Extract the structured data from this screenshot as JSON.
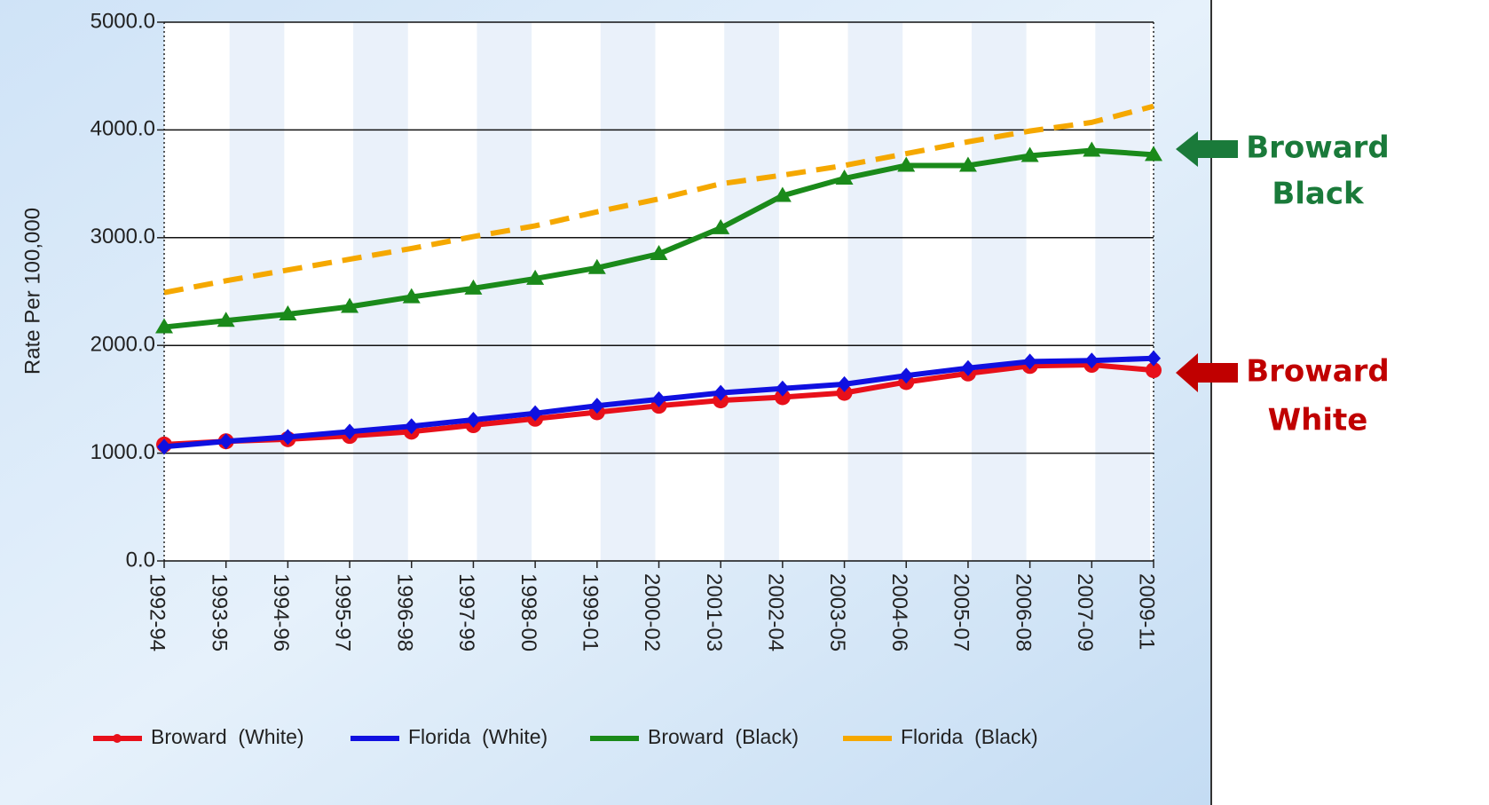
{
  "chart_data": {
    "type": "line",
    "y_label": "Rate Per 100,000",
    "categories": [
      "1992-94",
      "1993-95",
      "1994-96",
      "1995-97",
      "1996-98",
      "1997-99",
      "1998-00",
      "1999-01",
      "2000-02",
      "2001-03",
      "2002-04",
      "2003-05",
      "2004-06",
      "2005-07",
      "2006-08",
      "2007-09",
      "2009-11"
    ],
    "series": [
      {
        "name": "Broward  (White)",
        "color": "#e8101a",
        "marker": "circle",
        "dashed": false,
        "values": [
          1080,
          1110,
          1130,
          1160,
          1200,
          1260,
          1320,
          1380,
          1440,
          1490,
          1520,
          1560,
          1660,
          1740,
          1810,
          1820,
          1770
        ]
      },
      {
        "name": "Florida  (White)",
        "color": "#1010e0",
        "marker": "diamond",
        "dashed": false,
        "values": [
          1060,
          1110,
          1150,
          1200,
          1250,
          1310,
          1370,
          1440,
          1500,
          1560,
          1600,
          1640,
          1720,
          1790,
          1850,
          1860,
          1880
        ]
      },
      {
        "name": "Broward  (Black)",
        "color": "#1a8a1a",
        "marker": "triangle",
        "dashed": false,
        "values": [
          2170,
          2230,
          2290,
          2360,
          2450,
          2530,
          2620,
          2720,
          2850,
          3090,
          3390,
          3550,
          3670,
          3670,
          3760,
          3810,
          3770
        ]
      },
      {
        "name": "Florida  (Black)",
        "color": "#f5a800",
        "marker": "none",
        "dashed": true,
        "values": [
          2490,
          2600,
          2700,
          2800,
          2900,
          3010,
          3110,
          3240,
          3360,
          3500,
          3580,
          3670,
          3780,
          3890,
          3990,
          4070,
          4220
        ]
      }
    ],
    "ylim": [
      0,
      5000
    ],
    "yticks": [
      {
        "value": 0,
        "label": "0.0"
      },
      {
        "value": 1000,
        "label": "1000.0"
      },
      {
        "value": 2000,
        "label": "2000.0"
      },
      {
        "value": 3000,
        "label": "3000.0"
      },
      {
        "value": 4000,
        "label": "4000.0"
      },
      {
        "value": 5000,
        "label": "5000.0"
      }
    ],
    "grid": true,
    "legend": "bottom",
    "annotations": [
      {
        "lines": [
          "Broward",
          "Black"
        ],
        "color": "#1a7a3a"
      },
      {
        "lines": [
          "Broward",
          "White"
        ],
        "color": "#c00000"
      }
    ]
  }
}
